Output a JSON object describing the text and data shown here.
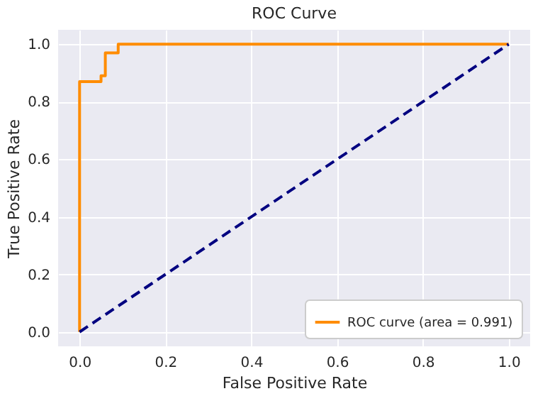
{
  "chart_data": {
    "type": "line",
    "title": "ROC Curve",
    "xlabel": "False Positive Rate",
    "ylabel": "True Positive Rate",
    "series": [
      {
        "name": "ROC curve (area = 0.991)",
        "type": "step",
        "color": "#ff8c00",
        "x": [
          0,
          0,
          0.05,
          0.06,
          0.09,
          1
        ],
        "values": [
          0,
          0.87,
          0.89,
          0.97,
          1.0,
          1.0
        ],
        "line_style": "solid"
      },
      {
        "color": "#000080",
        "x": [
          0,
          1
        ],
        "values": [
          0,
          1
        ],
        "line_style": "dashed"
      }
    ],
    "xlim": [
      -0.05,
      1.05
    ],
    "ylim": [
      -0.05,
      1.05
    ],
    "xticks": [
      {
        "value": 0,
        "label": "0.0"
      },
      0.2,
      0.4,
      0.6,
      0.8,
      {
        "value": 1,
        "label": "1.0"
      }
    ],
    "yticks": [
      {
        "value": 0,
        "label": "0.0"
      },
      0.2,
      0.4,
      0.6,
      0.8,
      {
        "value": 1,
        "label": "1.0"
      }
    ],
    "grid": true,
    "legend": "bottom right",
    "marker": "none"
  }
}
